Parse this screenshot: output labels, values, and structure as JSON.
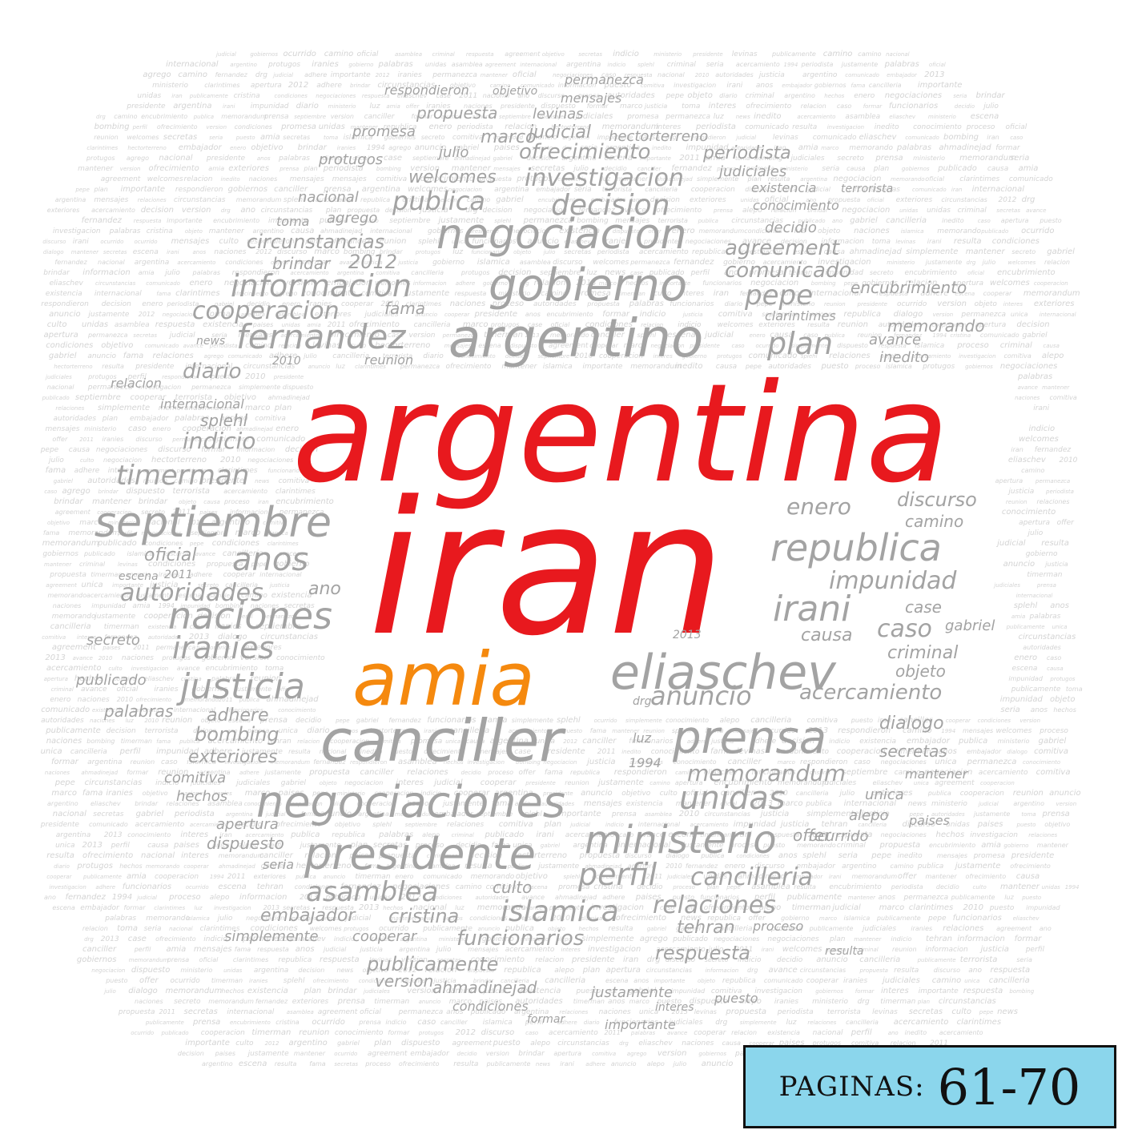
{
  "colors": {
    "primary": "#e8191e",
    "accent": "#f5890e",
    "words": "#a3a3a3",
    "filler": "#d4d4d4",
    "badge_bg": "#8bd6ec"
  },
  "badge": {
    "label": "PAGINAS:",
    "value": "61-70"
  },
  "words": {
    "argentina": "argentina",
    "iran": "iran",
    "amia": "amia",
    "argentino": "argentino",
    "negociacion": "negociacion",
    "gobierno": "gobierno",
    "informacion": "informacion",
    "fernandez": "fernandez",
    "cooperacion": "cooperacion",
    "septiembre": "septiembre",
    "canciller": "canciller",
    "negociaciones": "negociaciones",
    "presidente": "presidente",
    "eliaschev": "eliaschev",
    "prensa": "prensa",
    "republica": "republica",
    "naciones": "naciones",
    "justicia": "justicia",
    "ministerio": "ministerio",
    "unidas": "unidas",
    "decision": "decision",
    "investigacion": "investigacion",
    "publica": "publica",
    "welcomes": "welcomes",
    "ofrecimiento": "ofrecimiento",
    "periodista": "periodista",
    "plan": "plan",
    "pepe": "pepe",
    "timerman": "timerman",
    "anos": "anos",
    "autoridades": "autoridades",
    "iranies": "iranies",
    "impunidad": "impunidad",
    "irani": "irani",
    "caso": "caso",
    "anuncio": "anuncio",
    "acercamiento": "acercamiento",
    "memorandum": "memorandum",
    "asamblea": "asamblea",
    "islamica": "islamica",
    "perfil": "perfil",
    "cancilleria": "cancilleria",
    "relaciones": "relaciones",
    "funcionarios": "funcionarios",
    "publicamente": "publicamente",
    "respuesta": "respuesta",
    "tehran": "tehran",
    "comunicado": "comunicado",
    "agreement": "agreement",
    "encubrimiento": "encubrimiento",
    "memorando": "memorando",
    "circunstancias": "circunstancias",
    "brindar": "brindar",
    "year_2012": "2012",
    "diario": "diario",
    "indicio": "indicio",
    "splehl": "splehl",
    "oficial": "oficial",
    "enero": "enero",
    "discurso": "discurso",
    "camino": "camino",
    "criminal": "criminal",
    "objeto": "objeto",
    "dialogo": "dialogo",
    "secretas": "secretas",
    "causa": "causa",
    "gobiernos": "gobiernos",
    "embajador": "embajador",
    "cristina": "cristina",
    "culto": "culto",
    "bombing": "bombing",
    "exteriores": "exteriores",
    "adhere": "adhere",
    "palabras": "palabras",
    "comitiva": "comitiva",
    "hechos": "hechos",
    "apertura": "apertura",
    "dispuesto": "dispuesto",
    "simplemente": "simplemente",
    "cooperar": "cooperar",
    "version": "version",
    "ahmadinejad": "ahmadinejad",
    "justamente": "justamente",
    "clarin": "clarintimes",
    "fama": "fama",
    "reunion": "reunion",
    "avance": "avance",
    "inedito": "inedito",
    "propuesta": "propuesta",
    "mensajes": "mensajes",
    "promesa": "promesa",
    "marco": "marco",
    "judicial": "judicial",
    "levinas": "levinas",
    "hectorterreno": "hectorterreno",
    "protugos": "protugos",
    "julio": "julio",
    "judiciales": "judiciales",
    "existencia": "existencia",
    "terrorista": "terrorista",
    "conocimiento": "conocimiento",
    "nacional": "nacional",
    "agrego": "agrego",
    "toma": "toma",
    "decidio": "decidio",
    "secreto": "secreto",
    "publicado": "publicado",
    "ano": "ano",
    "internacional": "internacional",
    "relacion": "relacion",
    "escena": "escena",
    "case": "case",
    "gabriel": "gabriel",
    "mantener": "mantener",
    "unica": "unica",
    "alepo": "alepo",
    "paises": "paises",
    "proceso": "proceso",
    "resulta": "resulta",
    "luz": "luz",
    "year_1994": "1994",
    "year_2013": "2013",
    "year_2011": "2011",
    "year_2010": "2010",
    "permanezca": "permanezca",
    "respondieron": "respondieron",
    "objetivo": "objetivo",
    "seria": "seria",
    "ocurrido": "ocurrido",
    "condiciones": "condiciones",
    "formar": "formar",
    "importante": "importante",
    "interes": "interes",
    "puesto": "puesto",
    "news": "news",
    "drg": "drg",
    "offer": "offer"
  }
}
